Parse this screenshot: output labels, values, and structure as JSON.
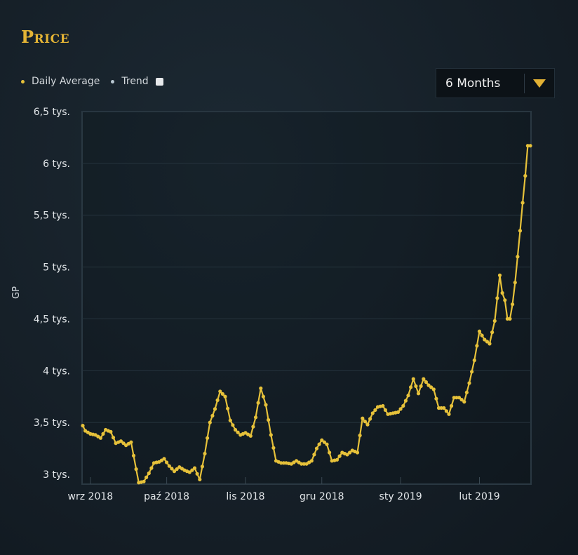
{
  "title": "Price",
  "legend": {
    "daily_average": "Daily Average",
    "trend": "Trend"
  },
  "range_select": {
    "value": "6 Months"
  },
  "colors": {
    "series": "#e6c13a",
    "trend": "#9ab0c0",
    "title": "#e4b435"
  },
  "chart_data": {
    "type": "line",
    "title": "",
    "xlabel": "",
    "ylabel": "GP",
    "ylim": [
      2900,
      6500
    ],
    "y_ticks": [
      {
        "value": 3000,
        "label": "3 tys."
      },
      {
        "value": 3500,
        "label": "3,5 tys."
      },
      {
        "value": 4000,
        "label": "4 tys."
      },
      {
        "value": 4500,
        "label": "4,5 tys."
      },
      {
        "value": 5000,
        "label": "5 tys."
      },
      {
        "value": 5500,
        "label": "5,5 tys."
      },
      {
        "value": 6000,
        "label": "6 tys."
      },
      {
        "value": 6500,
        "label": "6,5 tys."
      }
    ],
    "x_ticks": [
      {
        "value": 3,
        "label": "wrz 2018"
      },
      {
        "value": 33,
        "label": "paź 2018"
      },
      {
        "value": 64,
        "label": "lis 2018"
      },
      {
        "value": 94,
        "label": "gru 2018"
      },
      {
        "value": 125,
        "label": "sty 2019"
      },
      {
        "value": 156,
        "label": "lut 2019"
      }
    ],
    "grid": true,
    "legend_position": "top-left",
    "series": [
      {
        "name": "Daily Average",
        "keyframes": [
          [
            0,
            3470
          ],
          [
            1,
            3420
          ],
          [
            3,
            3390
          ],
          [
            5,
            3380
          ],
          [
            7,
            3350
          ],
          [
            9,
            3430
          ],
          [
            11,
            3410
          ],
          [
            13,
            3300
          ],
          [
            15,
            3320
          ],
          [
            17,
            3280
          ],
          [
            19,
            3310
          ],
          [
            21,
            3050
          ],
          [
            22,
            2920
          ],
          [
            24,
            2930
          ],
          [
            26,
            3010
          ],
          [
            28,
            3110
          ],
          [
            30,
            3120
          ],
          [
            32,
            3150
          ],
          [
            34,
            3080
          ],
          [
            36,
            3030
          ],
          [
            38,
            3070
          ],
          [
            40,
            3040
          ],
          [
            42,
            3020
          ],
          [
            44,
            3060
          ],
          [
            46,
            2950
          ],
          [
            48,
            3200
          ],
          [
            50,
            3500
          ],
          [
            52,
            3630
          ],
          [
            54,
            3800
          ],
          [
            56,
            3750
          ],
          [
            58,
            3520
          ],
          [
            60,
            3430
          ],
          [
            62,
            3380
          ],
          [
            64,
            3400
          ],
          [
            66,
            3370
          ],
          [
            68,
            3550
          ],
          [
            70,
            3830
          ],
          [
            72,
            3670
          ],
          [
            74,
            3380
          ],
          [
            76,
            3130
          ],
          [
            78,
            3110
          ],
          [
            80,
            3110
          ],
          [
            82,
            3100
          ],
          [
            84,
            3130
          ],
          [
            86,
            3100
          ],
          [
            88,
            3100
          ],
          [
            90,
            3130
          ],
          [
            92,
            3250
          ],
          [
            94,
            3330
          ],
          [
            96,
            3290
          ],
          [
            98,
            3130
          ],
          [
            100,
            3140
          ],
          [
            102,
            3210
          ],
          [
            104,
            3190
          ],
          [
            106,
            3230
          ],
          [
            108,
            3210
          ],
          [
            110,
            3540
          ],
          [
            112,
            3480
          ],
          [
            114,
            3590
          ],
          [
            116,
            3650
          ],
          [
            118,
            3660
          ],
          [
            120,
            3580
          ],
          [
            122,
            3590
          ],
          [
            124,
            3600
          ],
          [
            126,
            3660
          ],
          [
            128,
            3760
          ],
          [
            130,
            3920
          ],
          [
            132,
            3780
          ],
          [
            134,
            3920
          ],
          [
            136,
            3860
          ],
          [
            138,
            3820
          ],
          [
            140,
            3640
          ],
          [
            142,
            3640
          ],
          [
            144,
            3580
          ],
          [
            146,
            3740
          ],
          [
            148,
            3740
          ],
          [
            150,
            3700
          ],
          [
            152,
            3880
          ],
          [
            154,
            4100
          ],
          [
            156,
            4380
          ],
          [
            158,
            4300
          ],
          [
            160,
            4260
          ],
          [
            162,
            4480
          ],
          [
            163,
            4700
          ],
          [
            164,
            4920
          ],
          [
            165,
            4750
          ],
          [
            166,
            4680
          ],
          [
            167,
            4500
          ],
          [
            168,
            4500
          ],
          [
            169,
            4640
          ],
          [
            170,
            4850
          ],
          [
            171,
            5100
          ],
          [
            172,
            5350
          ],
          [
            173,
            5620
          ],
          [
            174,
            5880
          ],
          [
            175,
            6170
          ],
          [
            176,
            6170
          ]
        ]
      }
    ]
  }
}
